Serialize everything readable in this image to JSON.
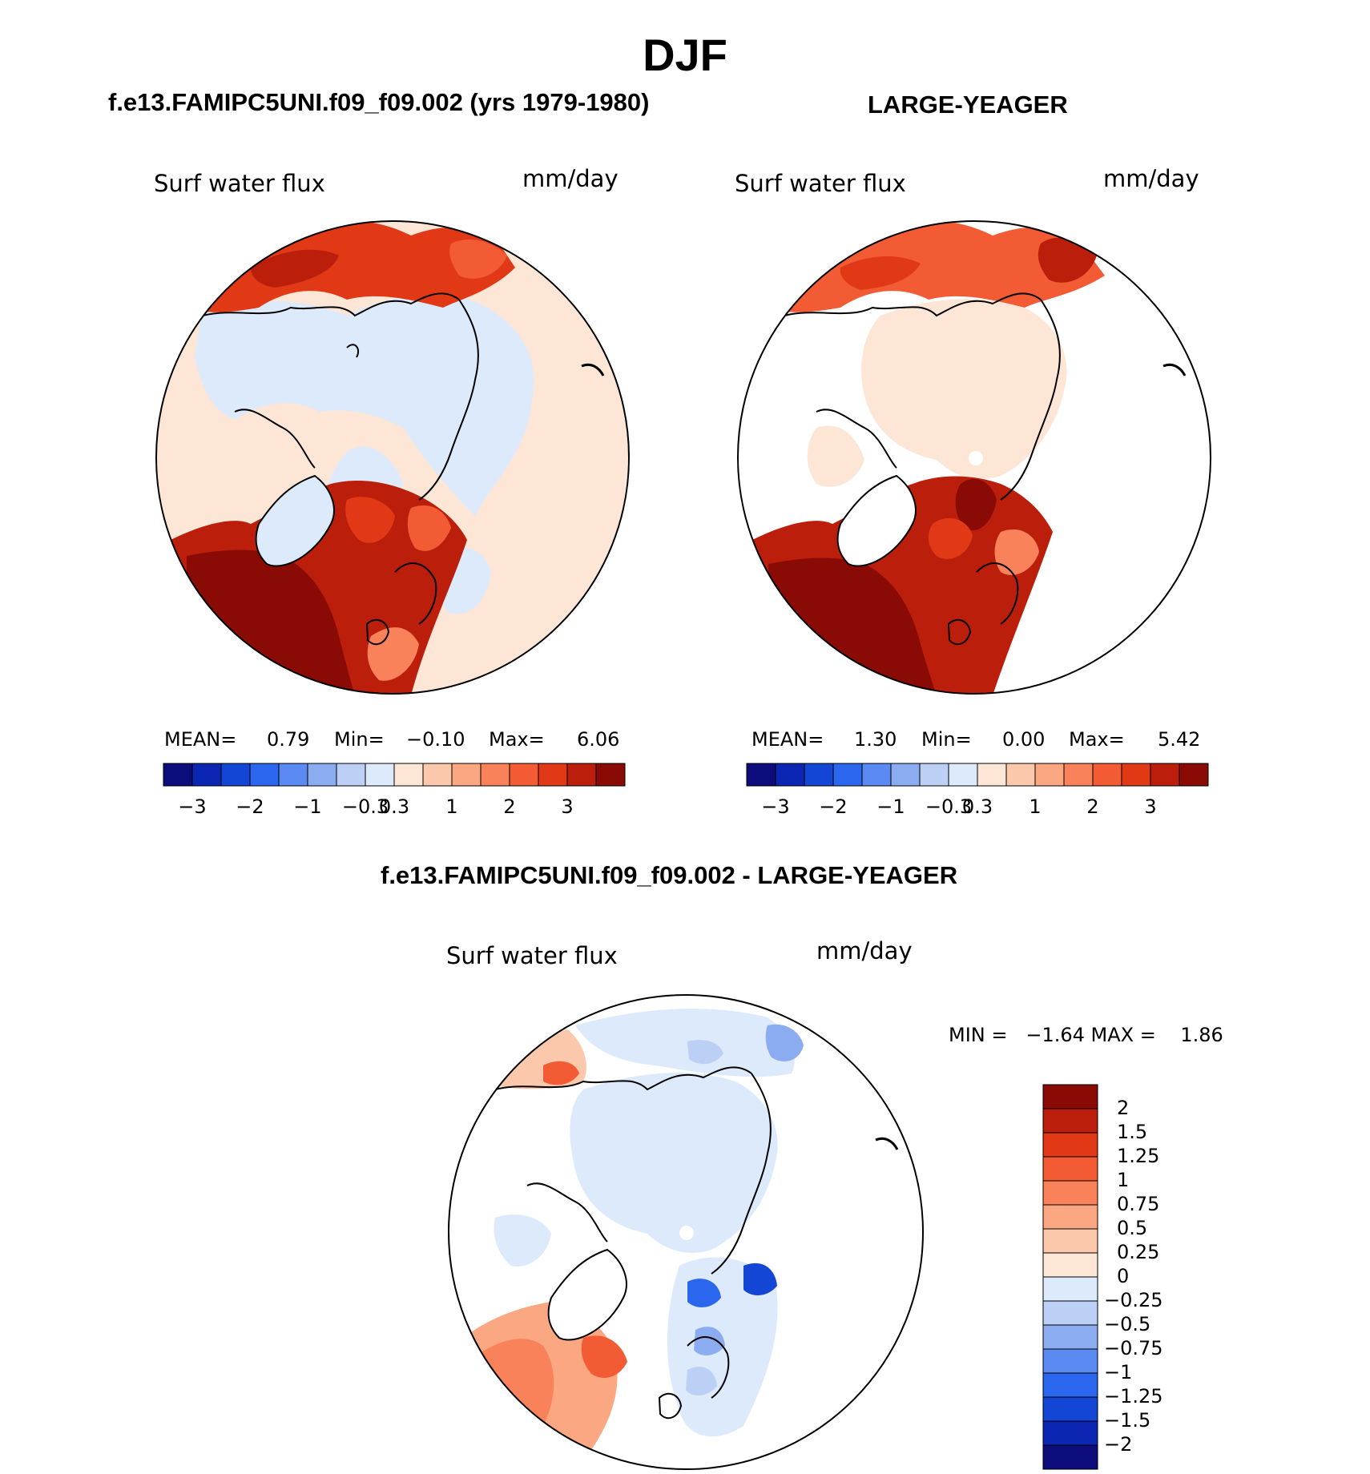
{
  "title": "DJF",
  "panels": [
    {
      "case_title": "f.e13.FAMIPC5UNI.f09_f09.002 (yrs 1979-1980)",
      "variable": "Surf water flux",
      "units": "mm/day",
      "stats": {
        "mean_label": "MEAN=",
        "mean": "0.79",
        "min_label": "Min=",
        "min": "−0.10",
        "max_label": "Max=",
        "max": "6.06"
      }
    },
    {
      "case_title": "LARGE-YEAGER",
      "variable": "Surf water flux",
      "units": "mm/day",
      "stats": {
        "mean_label": "MEAN=",
        "mean": "1.30",
        "min_label": "Min=",
        "min": "0.00",
        "max_label": "Max=",
        "max": "5.42"
      }
    }
  ],
  "colorbar_horizontal": {
    "colors": [
      "#0c0c7c",
      "#0a26b2",
      "#1446d6",
      "#2a66ee",
      "#5a8af2",
      "#8cacf2",
      "#bcd0f6",
      "#dceafc",
      "#fde6d6",
      "#fcc8ac",
      "#fba882",
      "#f9825a",
      "#f25b34",
      "#e13815",
      "#bc1e0c",
      "#8a0a06"
    ],
    "ticks": [
      "−3",
      "−2",
      "−1",
      "−0.3",
      "0.3",
      "1",
      "2",
      "3"
    ],
    "tick_positions": [
      1,
      3,
      5,
      7,
      8,
      10,
      12,
      14
    ]
  },
  "diff_panel": {
    "case_title": "f.e13.FAMIPC5UNI.f09_f09.002 - LARGE-YEAGER",
    "variable": "Surf water flux",
    "units": "mm/day",
    "minmax_text": "MIN =   −1.64 MAX =    1.86",
    "colorbar": {
      "colors": [
        "#8a0a06",
        "#bc1e0c",
        "#e13815",
        "#f25b34",
        "#f9825a",
        "#fba882",
        "#fcc8ac",
        "#fde6d6",
        "#dceafc",
        "#bcd0f6",
        "#8cacf2",
        "#5a8af2",
        "#2a66ee",
        "#1446d6",
        "#0a26b2",
        "#0c0c7c"
      ],
      "labels": [
        "2",
        "1.5",
        "1.25",
        "1",
        "0.75",
        "0.5",
        "0.25",
        "0",
        "−0.25",
        "−0.5",
        "−0.75",
        "−1",
        "−1.25",
        "−1.5",
        "−2"
      ]
    }
  }
}
